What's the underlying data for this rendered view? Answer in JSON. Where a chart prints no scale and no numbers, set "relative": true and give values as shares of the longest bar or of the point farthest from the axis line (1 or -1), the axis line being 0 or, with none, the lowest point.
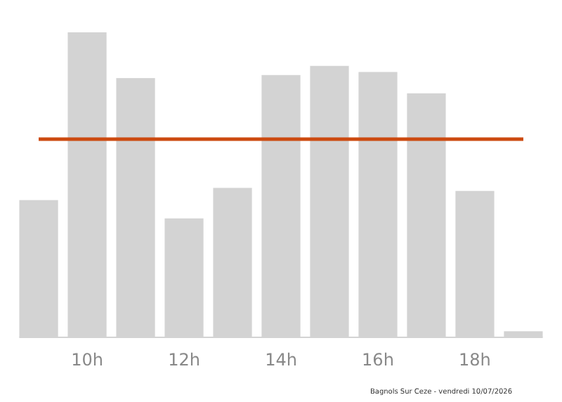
{
  "chart_data": {
    "type": "bar",
    "relative": true,
    "categories": [
      null,
      "10h",
      null,
      "12h",
      null,
      "14h",
      null,
      "16h",
      null,
      "18h",
      null
    ],
    "values": [
      0.45,
      1,
      0.85,
      0.39,
      0.49,
      0.86,
      0.89,
      0.87,
      0.8,
      0.48,
      0.02
    ],
    "color": "#d3d3d3",
    "ref_lines": [
      {
        "axis": "y",
        "value": 0.65,
        "color": "#cc4a10"
      }
    ],
    "annotations": [
      "Bagnols Sur Ceze - vendredi 10/07/2026"
    ]
  }
}
